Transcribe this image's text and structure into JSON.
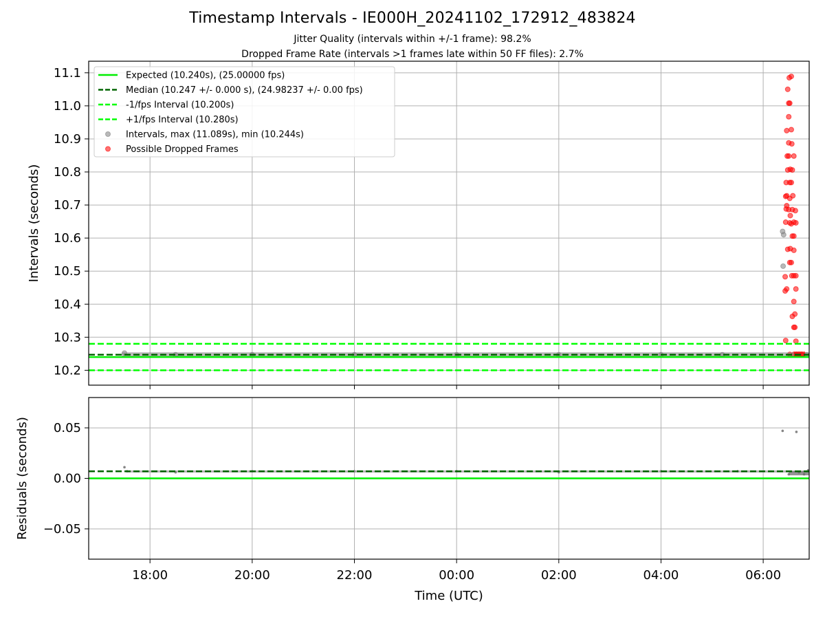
{
  "title": "Timestamp Intervals - IE000H_20241102_172912_483824",
  "subtitle_lines": [
    "Jitter Quality (intervals within +/-1 frame): 98.2%",
    "Dropped Frame Rate (intervals >1 frames late within 50 FF files): 2.7%"
  ],
  "colors": {
    "expected": "#00ee00",
    "median": "#006400",
    "bounds": "#00ff00",
    "intervals": "#808080",
    "dropped": "#ff0000",
    "grid": "#b0b0b0"
  },
  "chart_data": [
    {
      "type": "scatter",
      "ylabel": "Intervals (seconds)",
      "xlabel": "",
      "x_unit": "hours",
      "xlim": [
        -1.2,
        12.9
      ],
      "ylim": [
        10.155,
        11.135
      ],
      "yticks": [
        10.2,
        10.3,
        10.4,
        10.5,
        10.6,
        10.7,
        10.8,
        10.9,
        11.0,
        11.1
      ],
      "ytick_labels": [
        "10.2",
        "10.3",
        "10.4",
        "10.5",
        "10.6",
        "10.7",
        "10.8",
        "10.9",
        "11.0",
        "11.1"
      ],
      "grid": "horizontal+vertical",
      "legend_position": "top-left",
      "reference_lines": [
        {
          "name": "Expected (10.240s), (25.00000 fps)",
          "y": 10.24,
          "style": "solid",
          "color_key": "expected"
        },
        {
          "name": "Median (10.247 +/- 0.000 s), (24.98237 +/- 0.00 fps)",
          "y": 10.247,
          "style": "dashed",
          "color_key": "median"
        },
        {
          "name": "-1/fps Interval (10.200s)",
          "y": 10.2,
          "style": "dashed",
          "color_key": "bounds"
        },
        {
          "name": "+1/fps Interval (10.280s)",
          "y": 10.28,
          "style": "dashed",
          "color_key": "bounds"
        }
      ],
      "series": [
        {
          "name": "Intervals, max (11.089s), min (10.244s)",
          "color_key": "intervals",
          "points": [
            {
              "x": -0.5,
              "y": 10.252
            },
            {
              "x": 0.5,
              "y": 10.247
            },
            {
              "x": 2.0,
              "y": 10.247
            },
            {
              "x": 4.0,
              "y": 10.247
            },
            {
              "x": 6.0,
              "y": 10.247
            },
            {
              "x": 8.0,
              "y": 10.247
            },
            {
              "x": 10.0,
              "y": 10.247
            },
            {
              "x": 11.2,
              "y": 10.247
            },
            {
              "x": 12.38,
              "y": 10.62
            },
            {
              "x": 12.4,
              "y": 10.61
            },
            {
              "x": 12.39,
              "y": 10.515
            },
            {
              "x": 12.65,
              "y": 10.247
            },
            {
              "x": 12.85,
              "y": 10.247
            }
          ]
        },
        {
          "name": "Possible Dropped Frames",
          "color_key": "dropped",
          "points": [
            {
              "x": 12.55,
              "y": 11.089
            },
            {
              "x": 12.51,
              "y": 11.085
            },
            {
              "x": 12.48,
              "y": 11.05
            },
            {
              "x": 12.5,
              "y": 11.008
            },
            {
              "x": 12.52,
              "y": 11.008
            },
            {
              "x": 12.5,
              "y": 10.967
            },
            {
              "x": 12.46,
              "y": 10.925
            },
            {
              "x": 12.55,
              "y": 10.928
            },
            {
              "x": 12.5,
              "y": 10.888
            },
            {
              "x": 12.56,
              "y": 10.885
            },
            {
              "x": 12.47,
              "y": 10.848
            },
            {
              "x": 12.5,
              "y": 10.848
            },
            {
              "x": 12.6,
              "y": 10.848
            },
            {
              "x": 12.48,
              "y": 10.806
            },
            {
              "x": 12.53,
              "y": 10.808
            },
            {
              "x": 12.57,
              "y": 10.806
            },
            {
              "x": 12.45,
              "y": 10.768
            },
            {
              "x": 12.52,
              "y": 10.768
            },
            {
              "x": 12.55,
              "y": 10.768
            },
            {
              "x": 12.46,
              "y": 10.728
            },
            {
              "x": 12.44,
              "y": 10.726
            },
            {
              "x": 12.58,
              "y": 10.728
            },
            {
              "x": 12.52,
              "y": 10.72
            },
            {
              "x": 12.46,
              "y": 10.698
            },
            {
              "x": 12.45,
              "y": 10.688
            },
            {
              "x": 12.5,
              "y": 10.686
            },
            {
              "x": 12.57,
              "y": 10.686
            },
            {
              "x": 12.63,
              "y": 10.683
            },
            {
              "x": 12.53,
              "y": 10.668
            },
            {
              "x": 12.44,
              "y": 10.648
            },
            {
              "x": 12.52,
              "y": 10.646
            },
            {
              "x": 12.55,
              "y": 10.643
            },
            {
              "x": 12.6,
              "y": 10.648
            },
            {
              "x": 12.64,
              "y": 10.646
            },
            {
              "x": 12.57,
              "y": 10.606
            },
            {
              "x": 12.6,
              "y": 10.606
            },
            {
              "x": 12.48,
              "y": 10.566
            },
            {
              "x": 12.53,
              "y": 10.568
            },
            {
              "x": 12.6,
              "y": 10.563
            },
            {
              "x": 12.52,
              "y": 10.526
            },
            {
              "x": 12.55,
              "y": 10.526
            },
            {
              "x": 12.56,
              "y": 10.486
            },
            {
              "x": 12.6,
              "y": 10.486
            },
            {
              "x": 12.64,
              "y": 10.486
            },
            {
              "x": 12.43,
              "y": 10.483
            },
            {
              "x": 12.46,
              "y": 10.446
            },
            {
              "x": 12.43,
              "y": 10.44
            },
            {
              "x": 12.64,
              "y": 10.446
            },
            {
              "x": 12.6,
              "y": 10.408
            },
            {
              "x": 12.62,
              "y": 10.37
            },
            {
              "x": 12.57,
              "y": 10.363
            },
            {
              "x": 12.6,
              "y": 10.33
            },
            {
              "x": 12.62,
              "y": 10.33
            },
            {
              "x": 12.64,
              "y": 10.288
            },
            {
              "x": 12.44,
              "y": 10.29
            },
            {
              "x": 12.52,
              "y": 10.248
            },
            {
              "x": 12.6,
              "y": 10.248
            },
            {
              "x": 12.65,
              "y": 10.248
            },
            {
              "x": 12.7,
              "y": 10.248
            },
            {
              "x": 12.75,
              "y": 10.248
            }
          ]
        }
      ]
    },
    {
      "type": "scatter",
      "ylabel": "Residuals (seconds)",
      "xlabel": "Time (UTC)",
      "x_unit": "hours",
      "xlim": [
        -1.2,
        12.9
      ],
      "ylim": [
        -0.08,
        0.08
      ],
      "yticks": [
        -0.05,
        0.0,
        0.05
      ],
      "ytick_labels": [
        "−0.05",
        "0.00",
        "0.05"
      ],
      "xticks": [
        0,
        2,
        4,
        6,
        8,
        10,
        12
      ],
      "xtick_labels": [
        "18:00",
        "20:00",
        "22:00",
        "00:00",
        "02:00",
        "04:00",
        "06:00"
      ],
      "grid": "horizontal+vertical",
      "reference_lines": [
        {
          "name": "expected",
          "y": 0.0,
          "style": "solid",
          "color_key": "expected"
        },
        {
          "name": "median",
          "y": 0.007,
          "style": "dashed",
          "color_key": "median"
        }
      ],
      "series": [
        {
          "name": "residuals",
          "color_key": "intervals",
          "points": [
            {
              "x": -0.5,
              "y": 0.011
            },
            {
              "x": -0.45,
              "y": 0.007
            },
            {
              "x": 0.5,
              "y": 0.006
            },
            {
              "x": 2.0,
              "y": 0.007
            },
            {
              "x": 4.0,
              "y": 0.007
            },
            {
              "x": 6.0,
              "y": 0.007
            },
            {
              "x": 8.0,
              "y": 0.006
            },
            {
              "x": 10.0,
              "y": 0.007
            },
            {
              "x": 11.5,
              "y": 0.007
            },
            {
              "x": 12.38,
              "y": 0.047
            },
            {
              "x": 12.65,
              "y": 0.046
            },
            {
              "x": 12.5,
              "y": 0.004
            },
            {
              "x": 12.7,
              "y": 0.006
            },
            {
              "x": 12.8,
              "y": 0.004
            },
            {
              "x": 12.88,
              "y": 0.008
            }
          ]
        }
      ]
    }
  ]
}
